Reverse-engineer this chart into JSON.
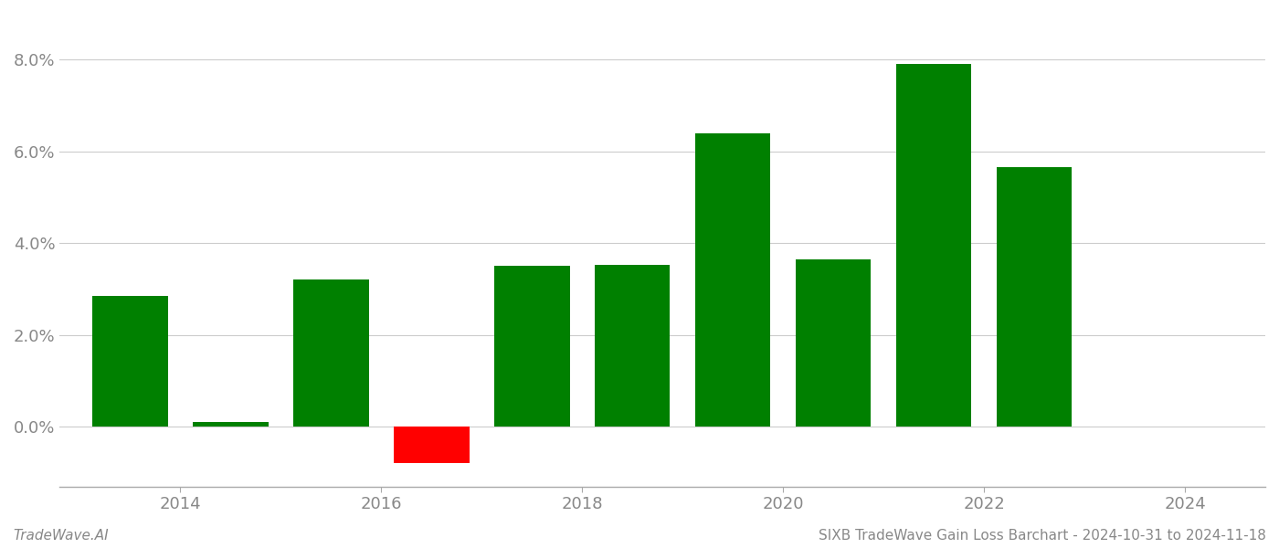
{
  "years": [
    2013.5,
    2014.5,
    2015.5,
    2016.5,
    2017.5,
    2018.5,
    2019.5,
    2020.5,
    2021.5,
    2022.5
  ],
  "values": [
    0.0285,
    0.001,
    0.032,
    -0.008,
    0.035,
    0.0352,
    0.064,
    0.0365,
    0.079,
    0.0565
  ],
  "colors": [
    "#008000",
    "#008000",
    "#008000",
    "#ff0000",
    "#008000",
    "#008000",
    "#008000",
    "#008000",
    "#008000",
    "#008000"
  ],
  "title": "SIXB TradeWave Gain Loss Barchart - 2024-10-31 to 2024-11-18",
  "watermark": "TradeWave.AI",
  "ylim_min": -0.013,
  "ylim_max": 0.09,
  "xticks": [
    2014,
    2016,
    2018,
    2020,
    2022,
    2024
  ],
  "yticks": [
    0.0,
    0.02,
    0.04,
    0.06,
    0.08
  ],
  "background_color": "#ffffff",
  "grid_color": "#cccccc",
  "bar_width": 0.75,
  "xlim_min": 2012.8,
  "xlim_max": 2024.8
}
